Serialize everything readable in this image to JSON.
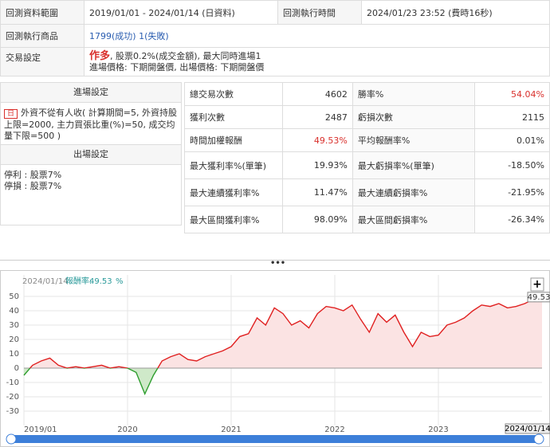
{
  "info": {
    "rows": [
      [
        "回測資料範圍",
        "2019/01/01 - 2024/01/14 (日資料)",
        "回測執行時間",
        "2024/01/23 23:52 (費時16秒)"
      ],
      [
        "回測執行商品",
        "1799(成功) 1(失敗)"
      ]
    ],
    "trade_label": "交易設定",
    "trade_side": "作多",
    "trade_cost": ", 股票0.2%(成交金額), 最大同時進場1",
    "trade_price": "進場價格: 下期開盤價, 出場價格: 下期開盤價"
  },
  "settings": {
    "entry_title": "進場設定",
    "entry_tag": "日",
    "entry_text": "外資不從有人收( 計算期間=5, 外資持股上限=2000, 主力買張比重(%)=50, 成交均量下限=500 )",
    "exit_title": "出場設定",
    "exit_lines": [
      "停利 : 股票7%",
      "停損 : 股票7%"
    ]
  },
  "stats": {
    "rows": [
      [
        "總交易次數",
        "4602",
        "勝率%",
        "54.04%"
      ],
      [
        "獲利次數",
        "2487",
        "虧損次數",
        "2115"
      ],
      [
        "時間加權報酬",
        "49.53%",
        "平均報酬率%",
        "0.01%"
      ],
      [
        "最大獲利率%(單筆)",
        "19.93%",
        "最大虧損率%(單筆)",
        "-18.50%"
      ],
      [
        "最大連續獲利率%",
        "11.47%",
        "最大連續虧損率%",
        "-21.95%"
      ],
      [
        "最大區間獲利率%",
        "98.09%",
        "最大區間虧損率%",
        "-26.34%"
      ]
    ]
  },
  "chart_data": {
    "type": "line",
    "end_date": "2024/01/14",
    "legend_label": "報酬率:",
    "unit": "%",
    "x": [
      "2019/01",
      "2019/02",
      "2019/03",
      "2019/04",
      "2019/05",
      "2019/06",
      "2019/07",
      "2019/08",
      "2019/09",
      "2019/10",
      "2019/11",
      "2019/12",
      "2020/01",
      "2020/02",
      "2020/03",
      "2020/04",
      "2020/05",
      "2020/06",
      "2020/07",
      "2020/08",
      "2020/09",
      "2020/10",
      "2020/11",
      "2020/12",
      "2021/01",
      "2021/02",
      "2021/03",
      "2021/04",
      "2021/05",
      "2021/06",
      "2021/07",
      "2021/08",
      "2021/09",
      "2021/10",
      "2021/11",
      "2021/12",
      "2022/01",
      "2022/02",
      "2022/03",
      "2022/04",
      "2022/05",
      "2022/06",
      "2022/07",
      "2022/08",
      "2022/09",
      "2022/10",
      "2022/11",
      "2022/12",
      "2023/01",
      "2023/02",
      "2023/03",
      "2023/04",
      "2023/05",
      "2023/06",
      "2023/07",
      "2023/08",
      "2023/09",
      "2023/10",
      "2023/11",
      "2023/12",
      "2024/01"
    ],
    "values": [
      -5,
      2,
      5,
      7,
      2,
      0,
      1,
      0,
      1,
      2,
      0,
      1,
      0,
      -3,
      -18,
      -5,
      5,
      8,
      10,
      6,
      5,
      8,
      10,
      12,
      15,
      22,
      24,
      35,
      30,
      42,
      38,
      30,
      33,
      28,
      38,
      43,
      42,
      40,
      44,
      34,
      25,
      38,
      32,
      37,
      25,
      15,
      25,
      22,
      23,
      30,
      32,
      35,
      40,
      44,
      43,
      45,
      42,
      43,
      45,
      48,
      49.53
    ],
    "color": "#e02020",
    "neg_color": "#2e9e2e",
    "ylim": [
      -40,
      65
    ],
    "yticks": [
      -30,
      -20,
      -10,
      0,
      10,
      20,
      30,
      40,
      50
    ],
    "xticks": [
      {
        "value": "2019/01",
        "label": "2019/01"
      },
      {
        "value": "2020/01",
        "label": "2020"
      },
      {
        "value": "2021/01",
        "label": "2021"
      },
      {
        "value": "2022/01",
        "label": "2022"
      },
      {
        "value": "2023/01",
        "label": "2023"
      }
    ],
    "grid": true
  }
}
